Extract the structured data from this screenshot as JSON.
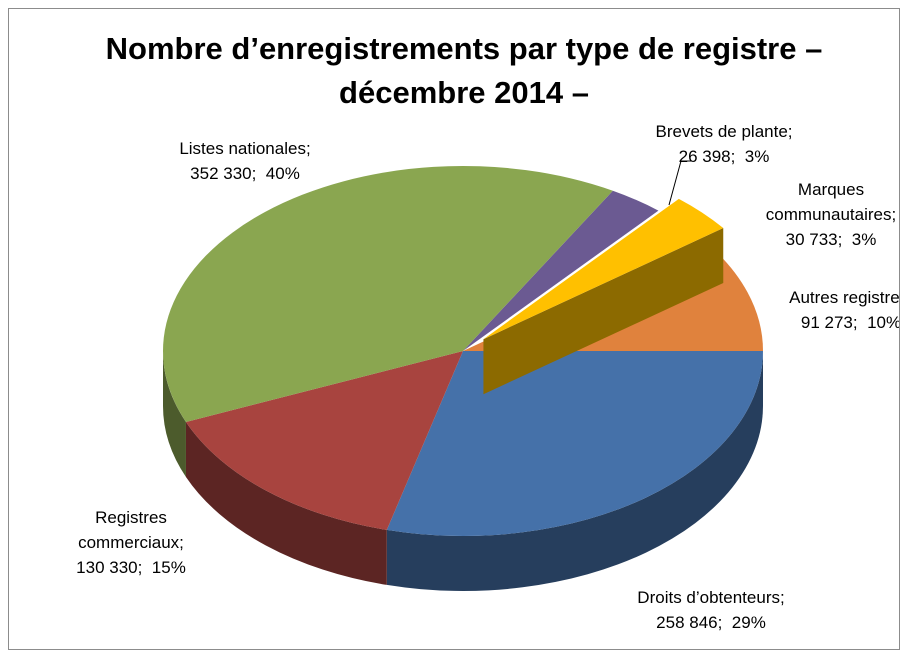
{
  "chart_data": {
    "type": "pie3d",
    "title": "Nombre d’enregistrements par type de registre – décembre 2014 –",
    "categories": [
      "Brevets de plante;",
      "Marques communautaires;",
      "Autres registres;",
      "Droits d’obtenteurs;",
      "Registres commerciaux;",
      "Listes nationales;"
    ],
    "values": [
      26398,
      30733,
      91273,
      258846,
      130330,
      352330
    ],
    "value_labels": [
      "26 398;",
      "30 733;",
      "91 273;",
      "258 846;",
      "130 330;",
      "352 330;"
    ],
    "percents": [
      3,
      3,
      10,
      29,
      15,
      40
    ],
    "percent_labels": [
      "3%",
      "3%",
      "10%",
      "29%",
      "15%",
      "40%"
    ],
    "colors": [
      "#6b5a92",
      "#ffc000",
      "#e0823d",
      "#4571a9",
      "#a8443f",
      "#8aa650"
    ],
    "exploded": [
      false,
      true,
      false,
      false,
      false,
      false
    ]
  }
}
